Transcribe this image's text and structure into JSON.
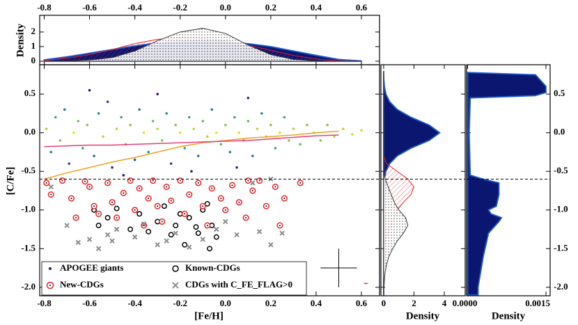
{
  "chart_data": [
    {
      "type": "scatter",
      "xlabel": "[Fe/H]",
      "ylabel": "[C/Fe]",
      "xlim": [
        -0.82,
        0.68
      ],
      "ylim": [
        -2.11,
        0.88
      ],
      "xticks": [
        -0.8,
        -0.6,
        -0.4,
        -0.2,
        {
          "value": 0,
          "label": "0.0"
        },
        0.2,
        0.4,
        0.6
      ],
      "yticks": [
        0.5,
        {
          "value": 0,
          "label": "0.0"
        },
        -0.5,
        {
          "value": -1,
          "label": "-1.0"
        },
        -1.5,
        {
          "value": -2,
          "label": "-2.0"
        }
      ],
      "hline": -0.6,
      "series": [
        {
          "name": "APOGEE giants",
          "color": "#3b0f70",
          "marker": "dot",
          "x": [
            -0.79,
            -0.77,
            -0.75,
            -0.73,
            -0.71,
            -0.69,
            -0.67,
            -0.65,
            -0.63,
            -0.61,
            -0.58,
            -0.56,
            -0.54,
            -0.52,
            -0.5,
            -0.48,
            -0.46,
            -0.44,
            -0.42,
            -0.4,
            -0.38,
            -0.36,
            -0.34,
            -0.32,
            -0.3,
            -0.28,
            -0.26,
            -0.24,
            -0.22,
            -0.2,
            -0.18,
            -0.16,
            -0.14,
            -0.12,
            -0.1,
            -0.08,
            -0.06,
            -0.04,
            -0.02,
            0,
            0.02,
            0.04,
            0.06,
            0.08,
            0.1,
            0.12,
            0.14,
            0.16,
            0.18,
            0.2,
            0.22,
            0.24,
            0.26,
            0.28,
            0.3,
            0.33,
            0.36,
            0.39,
            0.42,
            0.45,
            0.48,
            0.52,
            0.56,
            0.6,
            -0.6,
            -0.3,
            0.1,
            -0.45,
            -0.15,
            0.05
          ],
          "values": [
            0.05,
            -0.25,
            0.2,
            -0.1,
            0.3,
            -0.4,
            0,
            0.15,
            -0.2,
            0.1,
            -0.3,
            0.25,
            -0.05,
            0.4,
            -0.45,
            0.05,
            0.2,
            -0.15,
            0.1,
            -0.35,
            0.3,
            0,
            -0.25,
            0.15,
            0.05,
            -0.1,
            0.25,
            -0.4,
            0.1,
            0,
            -0.2,
            0.2,
            0.05,
            -0.3,
            0.15,
            -0.05,
            0.3,
            0,
            -0.15,
            0.1,
            -0.25,
            0.2,
            0,
            -0.1,
            0.15,
            -0.3,
            0.05,
            0.25,
            -0.05,
            0.1,
            -0.2,
            0,
            0.2,
            -0.1,
            0.05,
            -0.15,
            0.1,
            0,
            -0.1,
            0.1,
            -0.05,
            0.05,
            -0.02,
            0.03,
            0.55,
            0.5,
            0.45,
            -0.55,
            -0.5,
            -0.45
          ]
        },
        {
          "name": "Known-CDGs",
          "color": "#000000",
          "marker": "circle",
          "x": [
            -0.58,
            -0.56,
            -0.52,
            -0.48,
            -0.42,
            -0.38,
            -0.34,
            -0.3,
            -0.27,
            -0.24,
            -0.22,
            -0.18,
            -0.16,
            -0.12,
            -0.1,
            -0.08,
            -0.06,
            -0.04,
            -0.07,
            -0.13,
            -0.2
          ],
          "values": [
            -1,
            -1.2,
            -1.1,
            -0.98,
            -1.25,
            -1.05,
            -1.28,
            -1.15,
            -0.95,
            -1.32,
            -1.2,
            -1.45,
            -1.1,
            -1.3,
            -1,
            -0.92,
            -1.2,
            -1.35,
            -1.5,
            -1.22,
            -1.05
          ]
        },
        {
          "name": "New-CDGs",
          "color": "#e8202a",
          "marker": "ring",
          "x": [
            -0.79,
            -0.77,
            -0.72,
            -0.68,
            -0.66,
            -0.62,
            -0.6,
            -0.58,
            -0.56,
            -0.52,
            -0.5,
            -0.48,
            -0.45,
            -0.42,
            -0.4,
            -0.38,
            -0.36,
            -0.34,
            -0.32,
            -0.3,
            -0.28,
            -0.26,
            -0.24,
            -0.2,
            -0.18,
            -0.16,
            -0.12,
            -0.1,
            -0.08,
            -0.06,
            -0.02,
            0,
            0.03,
            0.06,
            0.09,
            0.12,
            0.15,
            0.18,
            0.22,
            0.26,
            0.24,
            0.33,
            0.1
          ],
          "values": [
            -0.65,
            -0.8,
            -0.62,
            -0.85,
            -1.1,
            -0.63,
            -0.7,
            -0.95,
            -1.05,
            -0.65,
            -0.9,
            -1.1,
            -0.78,
            -0.62,
            -1,
            -0.72,
            -1.2,
            -0.85,
            -0.62,
            -0.95,
            -1.15,
            -0.7,
            -0.88,
            -0.62,
            -1.05,
            -0.8,
            -0.65,
            -0.95,
            -1.2,
            -0.72,
            -0.85,
            -1,
            -0.68,
            -0.9,
            -1.1,
            -0.75,
            -0.62,
            -0.95,
            -0.7,
            -0.85,
            -1.2,
            -0.65,
            -0.62
          ]
        },
        {
          "name": "CDGs with C_FE_FLAG>0",
          "color": "#8c8c8c",
          "marker": "cross",
          "x": [
            -0.77,
            -0.7,
            -0.65,
            -0.6,
            -0.56,
            -0.52,
            -0.48,
            -0.5,
            -0.4,
            -0.36,
            -0.3,
            -0.26,
            -0.22,
            -0.16,
            -0.1,
            -0.04,
            0,
            0.05,
            0.15,
            0.2,
            0.25,
            0.12,
            0.2
          ],
          "values": [
            -0.7,
            -1.2,
            -1.42,
            -1.38,
            -1.5,
            -1.32,
            -1.25,
            -1.4,
            -1.35,
            -1.18,
            -1.45,
            -1.4,
            -1.3,
            -1.48,
            -1.38,
            -1.25,
            -1.15,
            -1.32,
            -1.28,
            -1.45,
            -1.3,
            -0.65,
            -0.6
          ]
        }
      ],
      "lines": [
        {
          "color": "#f0a020",
          "x": [
            -0.8,
            -0.7,
            -0.6,
            -0.5,
            -0.4,
            -0.3,
            -0.2,
            -0.1,
            0,
            0.1,
            0.2,
            0.3,
            0.4,
            0.5
          ],
          "values": [
            -0.6,
            -0.52,
            -0.45,
            -0.38,
            -0.32,
            -0.25,
            -0.18,
            -0.13,
            -0.1,
            -0.07,
            -0.05,
            -0.03,
            0,
            0.02
          ]
        },
        {
          "color": "#e0407a",
          "x": [
            -0.8,
            -0.7,
            -0.6,
            -0.5,
            -0.4,
            -0.3,
            -0.2,
            -0.1,
            0,
            0.1,
            0.2,
            0.3,
            0.4,
            0.5
          ],
          "values": [
            -0.18,
            -0.17,
            -0.16,
            -0.16,
            -0.15,
            -0.14,
            -0.13,
            -0.12,
            -0.11,
            -0.1,
            -0.08,
            -0.06,
            -0.04,
            -0.03
          ]
        }
      ],
      "error_bars": [
        {
          "color": "#000000",
          "x": 0.5,
          "y": -1.75,
          "xerr": 0.08,
          "yerr": 0.25
        },
        {
          "color": "#e8202a",
          "x": 0.62,
          "y": -1.95,
          "xerr": 0.01,
          "yerr": 0.01
        }
      ]
    },
    {
      "type": "density",
      "orientation": "vertical",
      "ylabel": "Density",
      "xlim": [
        -0.82,
        0.68
      ],
      "ylim": [
        -0.24,
        3.14
      ],
      "xticks": [
        -0.8,
        -0.6,
        -0.4,
        -0.2,
        {
          "value": 0,
          "label": "0.0"
        },
        0.2,
        0.4,
        0.6
      ],
      "yticks": [
        0,
        1,
        2
      ],
      "x": [
        -0.8,
        -0.7,
        -0.6,
        -0.5,
        -0.4,
        -0.3,
        -0.2,
        -0.1,
        0,
        0.1,
        0.2,
        0.3,
        0.4,
        0.5,
        0.6
      ],
      "series": [
        {
          "color": "#1f5fd0",
          "style": "solid",
          "values": [
            0.1,
            0.3,
            0.55,
            0.8,
            1.05,
            1.25,
            1.35,
            1.4,
            1.35,
            1.2,
            1,
            0.7,
            0.4,
            0.12,
            0.02
          ]
        },
        {
          "color": "#e8202a",
          "style": "hatch",
          "values": [
            0.05,
            0.2,
            0.45,
            0.8,
            1.2,
            1.5,
            1.6,
            1.55,
            1.4,
            1.1,
            0.75,
            0.4,
            0.15,
            0.03,
            0
          ]
        },
        {
          "color": "#333333",
          "style": "dots",
          "values": [
            0,
            0.02,
            0.08,
            0.25,
            0.7,
            1.4,
            2,
            2.25,
            1.9,
            1.1,
            0.45,
            0.12,
            0.02,
            0,
            0
          ]
        }
      ]
    },
    {
      "type": "density",
      "orientation": "horizontal",
      "xlabel": "Density",
      "xlim": [
        -0.18,
        5.38
      ],
      "ylim": [
        -2.11,
        0.88
      ],
      "xticks": [
        0,
        2,
        4
      ],
      "yticks": [
        0.5,
        0,
        -0.5,
        -1,
        -1.5,
        -2
      ],
      "y": [
        0.8,
        0.7,
        0.6,
        0.5,
        0.4,
        0.3,
        0.2,
        0.1,
        0,
        -0.1,
        -0.2,
        -0.3,
        -0.4,
        -0.5,
        -0.6,
        -0.7,
        -0.8,
        -0.9,
        -1,
        -1.1,
        -1.2,
        -1.3,
        -1.4,
        -1.5,
        -1.6,
        -1.7,
        -1.8,
        -1.9,
        -2,
        -2.1
      ],
      "series": [
        {
          "color": "#1f5fd0",
          "style": "solid",
          "values": [
            0,
            0.01,
            0.05,
            0.15,
            0.4,
            0.9,
            1.8,
            3,
            3.7,
            3,
            1.8,
            0.9,
            0.4,
            0.15,
            0.05,
            0,
            0,
            0,
            0,
            0,
            0,
            0,
            0,
            0,
            0,
            0,
            0,
            0,
            0,
            0
          ]
        },
        {
          "color": "#e8202a",
          "style": "hatch",
          "values": [
            0,
            0,
            0,
            0,
            0,
            0,
            0,
            0,
            0,
            0,
            0,
            0,
            0.2,
            0.9,
            1.6,
            2,
            1.8,
            1.3,
            0.9,
            0.7,
            0.5,
            0.25,
            0.08,
            0.02,
            0,
            0,
            0,
            0,
            0,
            0
          ]
        },
        {
          "color": "#333333",
          "style": "dots",
          "values": [
            0,
            0,
            0,
            0,
            0,
            0,
            0,
            0,
            0,
            0,
            0,
            0,
            0,
            0,
            0.1,
            0.3,
            0.5,
            0.7,
            1,
            1.45,
            1.6,
            1.3,
            0.9,
            0.6,
            0.35,
            0.2,
            0.1,
            0.05,
            0.02,
            0.01
          ]
        }
      ]
    },
    {
      "type": "density",
      "orientation": "horizontal",
      "xlabel": "Density",
      "xlim": [
        -2e-05,
        0.00158
      ],
      "ylim": [
        -2.11,
        0.88
      ],
      "xticks": [
        {
          "value": 0,
          "label": "0.0000"
        },
        {
          "value": 0.0015,
          "label": "0.0015"
        }
      ],
      "yticks": [
        0.5,
        {
          "value": 0,
          "label": "0.0"
        },
        -0.5,
        {
          "value": -1,
          "label": "-1.0"
        },
        -1.5,
        {
          "value": -2,
          "label": "-2.0"
        }
      ],
      "y": [
        0.78,
        0.75,
        0.6,
        0.52,
        0.48,
        0.45,
        0,
        -0.55,
        -0.6,
        -0.65,
        -0.8,
        -0.95,
        -1,
        -1.05,
        -1.1,
        -1.15,
        -1.3,
        -1.6,
        -2,
        -2.1
      ],
      "series": [
        {
          "color": "#1f5fd0",
          "style": "solid",
          "values": [
            0,
            0.0013,
            0.0015,
            0.0015,
            0.0013,
            5e-05,
            3e-05,
            5e-05,
            0.0003,
            0.0006,
            0.0006,
            0.00055,
            0.0004,
            0.00045,
            0.00065,
            0.0006,
            0.0004,
            0.0003,
            0.0002,
            0.0002
          ]
        }
      ]
    }
  ]
}
